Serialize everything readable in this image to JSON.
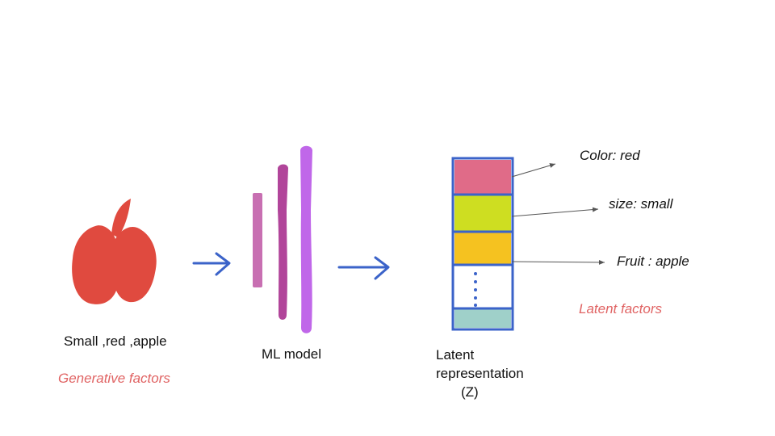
{
  "input": {
    "caption": "Small ,red ,apple",
    "subcaption": "Generative factors"
  },
  "model": {
    "caption": "ML model"
  },
  "latent": {
    "caption_line1": "Latent",
    "caption_line2": "representation",
    "caption_line3": "(Z)",
    "slots": [
      {
        "color": "#e06b88"
      },
      {
        "color": "#cede21"
      },
      {
        "color": "#f5c220"
      },
      {
        "color": "#ffffff"
      },
      {
        "color": "#9fd0c9"
      }
    ],
    "border_color": "#3b63c9"
  },
  "factors": {
    "color_label": "Color: red",
    "size_label": "size: small",
    "fruit_label": "Fruit : apple",
    "heading": "Latent factors"
  },
  "colors": {
    "apple": "#e04a3f",
    "arrow": "#3b63c9",
    "layer1": "#c86fb2",
    "layer2": "#b1459a",
    "layer3": "#c067e9",
    "accent_text": "#e06363"
  }
}
